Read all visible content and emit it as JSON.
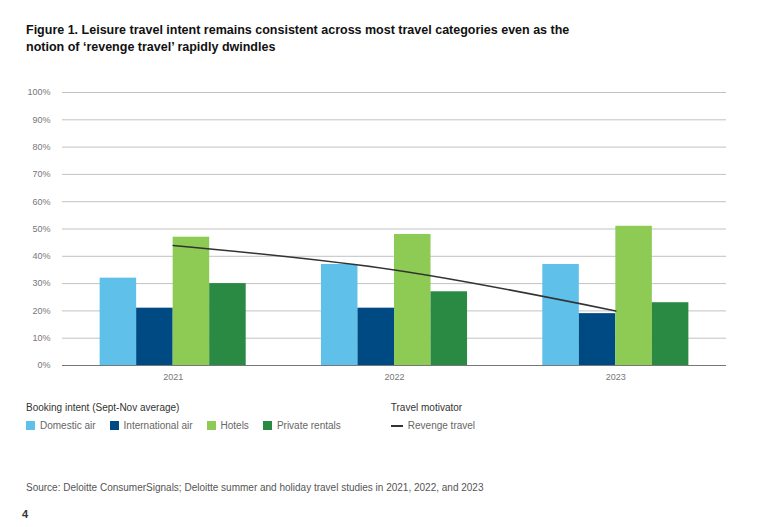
{
  "chart_data": {
    "type": "bar",
    "title": "Figure 1. Leisure travel intent remains consistent across most travel categories even as the notion of ‘revenge travel’ rapidly dwindles",
    "source": "Source: Deloitte ConsumerSignals; Deloitte summer and holiday travel studies in 2021, 2022, and 2023",
    "page_number": 4,
    "categories": [
      "2021",
      "2022",
      "2023"
    ],
    "series": [
      {
        "name": "Domestic air",
        "group": "Booking intent (Sept-Nov average)",
        "type": "bar",
        "color": "#5fc1ea",
        "values": [
          32,
          37,
          37
        ]
      },
      {
        "name": "International air",
        "group": "Booking intent (Sept-Nov average)",
        "type": "bar",
        "color": "#004a84",
        "values": [
          21,
          21,
          19
        ]
      },
      {
        "name": "Hotels",
        "group": "Booking intent (Sept-Nov average)",
        "type": "bar",
        "color": "#8ecb55",
        "values": [
          47,
          48,
          51
        ]
      },
      {
        "name": "Private rentals",
        "group": "Booking intent (Sept-Nov average)",
        "type": "bar",
        "color": "#2a8a44",
        "values": [
          30,
          27,
          23
        ]
      },
      {
        "name": "Revenge travel",
        "group": "Travel motivator",
        "type": "line",
        "line_style": "solid",
        "color": "#333333",
        "values": [
          44,
          35,
          20
        ]
      }
    ],
    "ylim": [
      0,
      100
    ],
    "yticks": [
      {
        "value": 0,
        "label": "0%"
      },
      {
        "value": 10,
        "label": "10%"
      },
      {
        "value": 20,
        "label": "20%"
      },
      {
        "value": 30,
        "label": "30%"
      },
      {
        "value": 40,
        "label": "40%"
      },
      {
        "value": 50,
        "label": "50%"
      },
      {
        "value": 60,
        "label": "60%"
      },
      {
        "value": 70,
        "label": "70%"
      },
      {
        "value": 80,
        "label": "80%"
      },
      {
        "value": 90,
        "label": "90%"
      },
      {
        "value": 100,
        "label": "100%"
      }
    ],
    "grid": true,
    "legend": "bottom"
  }
}
